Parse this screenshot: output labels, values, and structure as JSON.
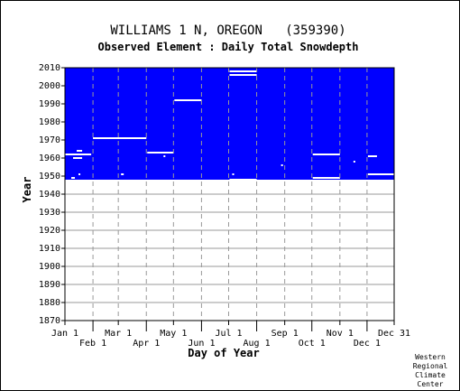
{
  "chart_data": {
    "type": "heatmap",
    "title": "WILLIAMS 1 N, OREGON   (359390)",
    "subtitle": "Observed Element : Daily Total Snowdepth",
    "xlabel": "Day of Year",
    "ylabel": "Year",
    "xlim": [
      1,
      365
    ],
    "ylim": [
      1870,
      2010
    ],
    "x_ticks_upper": [
      {
        "label": "Jan 1",
        "day": 1
      },
      {
        "label": "Mar 1",
        "day": 60
      },
      {
        "label": "May 1",
        "day": 121
      },
      {
        "label": "Jul 1",
        "day": 182
      },
      {
        "label": "Sep 1",
        "day": 244
      },
      {
        "label": "Nov 1",
        "day": 305
      },
      {
        "label": "Dec 31",
        "day": 365
      }
    ],
    "x_ticks_lower": [
      {
        "label": "Feb 1",
        "day": 32
      },
      {
        "label": "Apr 1",
        "day": 91
      },
      {
        "label": "Jun 1",
        "day": 152
      },
      {
        "label": "Aug 1",
        "day": 213
      },
      {
        "label": "Oct 1",
        "day": 274
      },
      {
        "label": "Dec 1",
        "day": 335
      }
    ],
    "y_ticks": [
      1870,
      1880,
      1890,
      1900,
      1910,
      1920,
      1930,
      1940,
      1950,
      1960,
      1970,
      1980,
      1990,
      2000,
      2010
    ],
    "grid": true,
    "data_color": "#0000ff",
    "observed_period": {
      "start_year": 1948,
      "end_year": 2010
    },
    "missing_segments": [
      {
        "year": 1962,
        "start_day": 1,
        "end_day": 30
      },
      {
        "year": 1964,
        "start_day": 14,
        "end_day": 20
      },
      {
        "year": 1960,
        "start_day": 10,
        "end_day": 20
      },
      {
        "year": 1951,
        "start_day": 16,
        "end_day": 18
      },
      {
        "year": 1949,
        "start_day": 8,
        "end_day": 12
      },
      {
        "year": 1971,
        "start_day": 32,
        "end_day": 91
      },
      {
        "year": 1951,
        "start_day": 63,
        "end_day": 66
      },
      {
        "year": 1963,
        "start_day": 92,
        "end_day": 121
      },
      {
        "year": 1961,
        "start_day": 110,
        "end_day": 112
      },
      {
        "year": 1992,
        "start_day": 122,
        "end_day": 152
      },
      {
        "year": 2008,
        "start_day": 183,
        "end_day": 213
      },
      {
        "year": 2006,
        "start_day": 183,
        "end_day": 213
      },
      {
        "year": 1951,
        "start_day": 186,
        "end_day": 188
      },
      {
        "year": 1948,
        "start_day": 183,
        "end_day": 213
      },
      {
        "year": 1956,
        "start_day": 240,
        "end_day": 242
      },
      {
        "year": 1962,
        "start_day": 275,
        "end_day": 305
      },
      {
        "year": 1949,
        "start_day": 275,
        "end_day": 305
      },
      {
        "year": 1958,
        "start_day": 320,
        "end_day": 322
      },
      {
        "year": 1961,
        "start_day": 336,
        "end_day": 346
      },
      {
        "year": 1951,
        "start_day": 336,
        "end_day": 365
      }
    ],
    "credit": [
      "Western",
      "Regional",
      "Climate",
      "Center"
    ]
  }
}
